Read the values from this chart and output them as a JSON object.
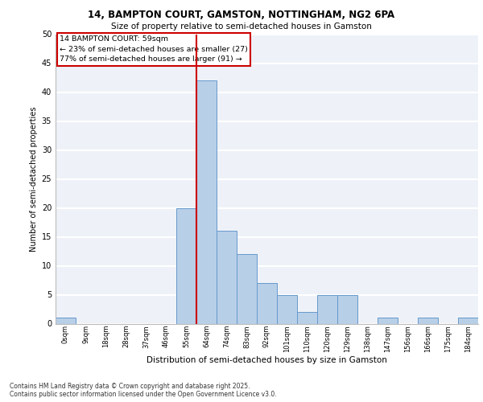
{
  "title1": "14, BAMPTON COURT, GAMSTON, NOTTINGHAM, NG2 6PA",
  "title2": "Size of property relative to semi-detached houses in Gamston",
  "xlabel": "Distribution of semi-detached houses by size in Gamston",
  "ylabel": "Number of semi-detached properties",
  "footer1": "Contains HM Land Registry data © Crown copyright and database right 2025.",
  "footer2": "Contains public sector information licensed under the Open Government Licence v3.0.",
  "bin_labels": [
    "0sqm",
    "9sqm",
    "18sqm",
    "28sqm",
    "37sqm",
    "46sqm",
    "55sqm",
    "64sqm",
    "74sqm",
    "83sqm",
    "92sqm",
    "101sqm",
    "110sqm",
    "120sqm",
    "129sqm",
    "138sqm",
    "147sqm",
    "156sqm",
    "166sqm",
    "175sqm",
    "184sqm"
  ],
  "bin_values": [
    1,
    0,
    0,
    0,
    0,
    0,
    20,
    42,
    16,
    12,
    7,
    5,
    2,
    5,
    5,
    0,
    1,
    0,
    1,
    0,
    1
  ],
  "bar_color": "#b8cfe8",
  "bar_edge_color": "#6699cc",
  "property_line_x": 6.5,
  "annotation_title": "14 BAMPTON COURT: 59sqm",
  "annotation_line1": "← 23% of semi-detached houses are smaller (27)",
  "annotation_line2": "77% of semi-detached houses are larger (91) →",
  "ylim": [
    0,
    50
  ],
  "yticks": [
    0,
    5,
    10,
    15,
    20,
    25,
    30,
    35,
    40,
    45,
    50
  ],
  "background_color": "#eef2f8",
  "grid_color": "#ffffff",
  "annotation_box_color": "#ffffff",
  "annotation_box_edge": "#cc0000",
  "red_line_color": "#cc0000"
}
